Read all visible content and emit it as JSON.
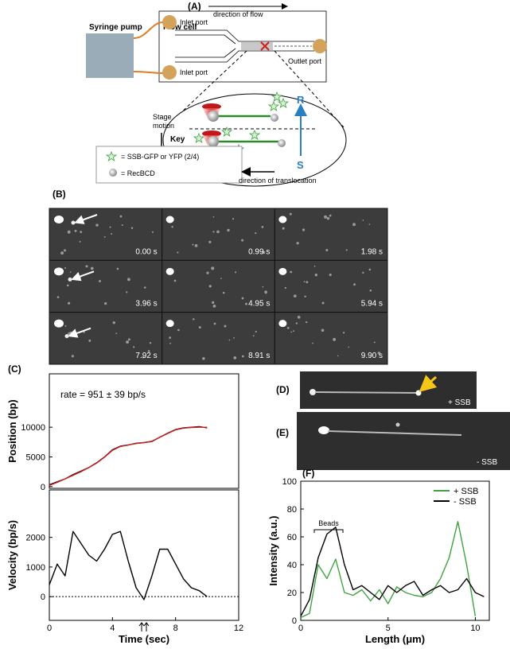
{
  "panel_a": {
    "label": "(A)",
    "syringe": "Syringe pump",
    "flow_cell": "Flow cell",
    "flow_direction": "direction of flow",
    "inlet_top": "Inlet port",
    "inlet_bottom": "Inlet port",
    "outlet": "Outlet port",
    "stage_motion": [
      "Stage",
      "motion"
    ],
    "r_label": "R",
    "s_label": "S",
    "key_title": "Key",
    "key_ssb": "= SSB-GFP or YFP  (2/4)",
    "key_recbcd": "= RecBCD",
    "translocation": "direction of translocation"
  },
  "panel_b": {
    "label": "(B)",
    "times": [
      "0.00 s",
      "0.99 s",
      "1.98 s",
      "3.96 s",
      "4.95 s",
      "5.94 s",
      "7.92 s",
      "8.91 s",
      "9.90 s"
    ]
  },
  "panel_d": {
    "label": "(D)",
    "condition": "+ SSB"
  },
  "panel_e": {
    "label": "(E)",
    "condition": "- SSB"
  },
  "chart_data": [
    {
      "type": "line",
      "panel": "(C)",
      "y_label": "Position (bp)",
      "annotation": "rate = 951 ± 39 bp/s",
      "x": [
        0,
        0.5,
        1,
        1.5,
        2,
        2.5,
        3,
        3.5,
        4,
        4.5,
        5,
        5.5,
        6,
        6.5,
        7,
        7.5,
        8,
        8.5,
        9,
        9.5,
        10
      ],
      "series": [
        {
          "color": "#000000",
          "values": [
            300,
            800,
            1300,
            2000,
            2600,
            3200,
            4000,
            5000,
            6200,
            6800,
            7000,
            7300,
            7400,
            7600,
            8300,
            9000,
            9600,
            9900,
            10000,
            10100,
            9900
          ]
        },
        {
          "color": "#d02020",
          "values": [
            200,
            700,
            1300,
            1900,
            2500,
            3200,
            3950,
            4950,
            6100,
            6750,
            7000,
            7250,
            7400,
            7650,
            8300,
            8950,
            9550,
            9850,
            9950,
            10000,
            10000
          ]
        }
      ],
      "xlim": [
        0,
        12
      ],
      "ylim": [
        -300,
        19000
      ],
      "yticks": [
        0,
        5000,
        10000
      ]
    },
    {
      "type": "line",
      "y_label": "Velocity (bp/s)",
      "x_label": "Time (sec)",
      "x": [
        0,
        0.5,
        1,
        1.5,
        2,
        2.5,
        3,
        3.5,
        4,
        4.5,
        5,
        5.5,
        6,
        6.5,
        7,
        7.5,
        8,
        8.5,
        9,
        9.5,
        10
      ],
      "series": [
        {
          "color": "#000000",
          "values": [
            400,
            1100,
            700,
            2200,
            1800,
            1400,
            1200,
            1600,
            2100,
            2200,
            1200,
            300,
            -100,
            700,
            1600,
            1600,
            1100,
            600,
            300,
            200,
            0
          ]
        }
      ],
      "ref_line": 0,
      "xlim": [
        0,
        12
      ],
      "xticks": [
        0,
        4,
        8,
        12
      ],
      "ylim": [
        -800,
        3600
      ],
      "yticks": [
        0,
        1000,
        2000
      ]
    },
    {
      "type": "line",
      "panel": "(F)",
      "y_label": "Intensity (a.u.)",
      "x_label": "Length (μm)",
      "annotation": "Beads",
      "x": [
        0,
        0.5,
        1,
        1.5,
        2,
        2.5,
        3,
        3.5,
        4,
        4.5,
        5,
        5.5,
        6,
        6.5,
        7,
        7.5,
        8,
        8.5,
        9,
        9.5,
        10,
        10.5
      ],
      "series": [
        {
          "name": "+ SSB",
          "color": "#3fa33f",
          "values": [
            2,
            5,
            40,
            30,
            44,
            20,
            18,
            22,
            14,
            22,
            12,
            24,
            20,
            18,
            17,
            20,
            30,
            45,
            71,
            40,
            3,
            null
          ]
        },
        {
          "name": "- SSB",
          "color": "#000000",
          "values": [
            3,
            15,
            45,
            62,
            67,
            40,
            22,
            25,
            20,
            15,
            25,
            20,
            25,
            28,
            18,
            22,
            25,
            20,
            22,
            30,
            20,
            17
          ]
        }
      ],
      "legend": "upper right",
      "xlim": [
        0,
        10.8
      ],
      "xticks": [
        0,
        5,
        10
      ],
      "ylim": [
        0,
        100
      ],
      "yticks": [
        0,
        20,
        40,
        60,
        80,
        100
      ]
    }
  ]
}
